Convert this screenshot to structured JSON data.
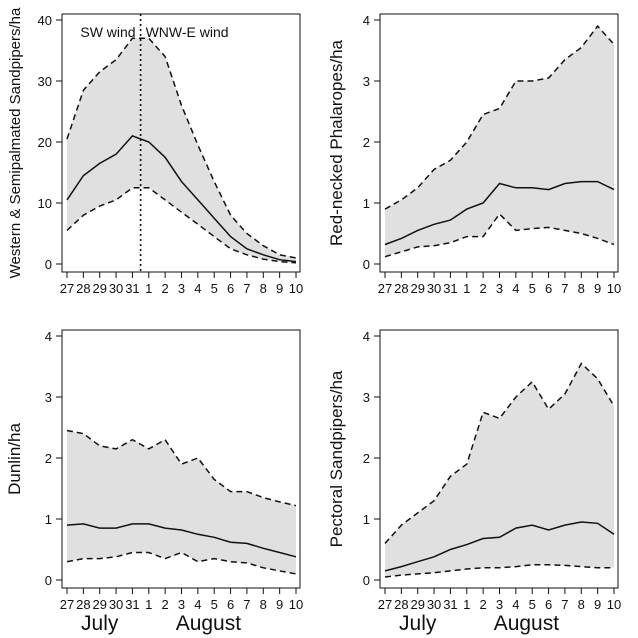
{
  "chart_data": [
    {
      "type": "area",
      "ylabel": "Western & Semipalmated Sandpipers/ha",
      "x": [
        "27",
        "28",
        "29",
        "30",
        "31",
        "1",
        "2",
        "3",
        "4",
        "5",
        "6",
        "7",
        "8",
        "9",
        "10"
      ],
      "ylim": [
        0,
        40
      ],
      "yticks": [
        0,
        10,
        20,
        30,
        40
      ],
      "series": [
        {
          "role": "upper",
          "values": [
            20.5,
            28.5,
            31.5,
            33.5,
            37,
            37,
            34,
            26,
            19.5,
            13.5,
            8,
            5,
            3,
            1.5,
            1
          ]
        },
        {
          "role": "mean",
          "values": [
            10.5,
            14.5,
            16.5,
            18,
            21,
            20,
            17.5,
            13.5,
            10.5,
            7.5,
            4.5,
            2.5,
            1.5,
            0.7,
            0.4
          ]
        },
        {
          "role": "lower",
          "values": [
            5.5,
            8,
            9.5,
            10.5,
            12.5,
            12.5,
            10.5,
            8.5,
            6.5,
            4.5,
            2.5,
            1.5,
            0.8,
            0.4,
            0.2
          ]
        }
      ],
      "annotations": {
        "vline_at": 5.5,
        "left_text": "SW wind",
        "right_text": "WNW-E wind"
      }
    },
    {
      "type": "area",
      "ylabel": "Red-necked Phalaropes/ha",
      "x": [
        "27",
        "28",
        "29",
        "30",
        "31",
        "1",
        "2",
        "3",
        "4",
        "5",
        "6",
        "7",
        "8",
        "9",
        "10"
      ],
      "ylim": [
        0,
        4
      ],
      "yticks": [
        0,
        1,
        2,
        3,
        4
      ],
      "series": [
        {
          "role": "upper",
          "values": [
            0.9,
            1.05,
            1.25,
            1.55,
            1.7,
            2.0,
            2.45,
            2.55,
            3.0,
            3.0,
            3.05,
            3.35,
            3.55,
            3.9,
            3.6
          ]
        },
        {
          "role": "mean",
          "values": [
            0.32,
            0.42,
            0.55,
            0.65,
            0.72,
            0.9,
            1.0,
            1.32,
            1.25,
            1.25,
            1.22,
            1.32,
            1.35,
            1.35,
            1.22
          ]
        },
        {
          "role": "lower",
          "values": [
            0.12,
            0.2,
            0.28,
            0.3,
            0.35,
            0.45,
            0.45,
            0.82,
            0.55,
            0.58,
            0.6,
            0.55,
            0.5,
            0.42,
            0.32
          ]
        }
      ]
    },
    {
      "type": "area",
      "ylabel": "Dunlin/ha",
      "x": [
        "27",
        "28",
        "29",
        "30",
        "31",
        "1",
        "2",
        "3",
        "4",
        "5",
        "6",
        "7",
        "8",
        "9",
        "10"
      ],
      "ylim": [
        0,
        4
      ],
      "yticks": [
        0,
        1,
        2,
        3,
        4
      ],
      "series": [
        {
          "role": "upper",
          "values": [
            2.45,
            2.4,
            2.2,
            2.15,
            2.3,
            2.15,
            2.3,
            1.9,
            2.0,
            1.65,
            1.45,
            1.45,
            1.35,
            1.28,
            1.22
          ]
        },
        {
          "role": "mean",
          "values": [
            0.9,
            0.92,
            0.85,
            0.85,
            0.92,
            0.92,
            0.85,
            0.82,
            0.75,
            0.7,
            0.62,
            0.6,
            0.52,
            0.45,
            0.38
          ]
        },
        {
          "role": "lower",
          "values": [
            0.3,
            0.35,
            0.35,
            0.38,
            0.45,
            0.45,
            0.35,
            0.45,
            0.3,
            0.35,
            0.3,
            0.28,
            0.2,
            0.15,
            0.1
          ]
        }
      ],
      "month_labels": [
        "July",
        "August"
      ]
    },
    {
      "type": "area",
      "ylabel": "Pectoral Sandpipers/ha",
      "x": [
        "27",
        "28",
        "29",
        "30",
        "31",
        "1",
        "2",
        "3",
        "4",
        "5",
        "6",
        "7",
        "8",
        "9",
        "10"
      ],
      "ylim": [
        0,
        4
      ],
      "yticks": [
        0,
        1,
        2,
        3,
        4
      ],
      "series": [
        {
          "role": "upper",
          "values": [
            0.6,
            0.9,
            1.1,
            1.3,
            1.7,
            1.9,
            2.75,
            2.65,
            3.0,
            3.25,
            2.8,
            3.05,
            3.55,
            3.3,
            2.85
          ]
        },
        {
          "role": "mean",
          "values": [
            0.15,
            0.22,
            0.3,
            0.38,
            0.5,
            0.58,
            0.68,
            0.7,
            0.85,
            0.9,
            0.82,
            0.9,
            0.95,
            0.93,
            0.75
          ]
        },
        {
          "role": "lower",
          "values": [
            0.05,
            0.08,
            0.1,
            0.12,
            0.15,
            0.18,
            0.2,
            0.2,
            0.22,
            0.25,
            0.25,
            0.24,
            0.22,
            0.2,
            0.2
          ]
        }
      ],
      "month_labels": [
        "July",
        "August"
      ]
    }
  ],
  "style": {
    "band_color": "#e0e0e0",
    "line_color": "#111111"
  }
}
